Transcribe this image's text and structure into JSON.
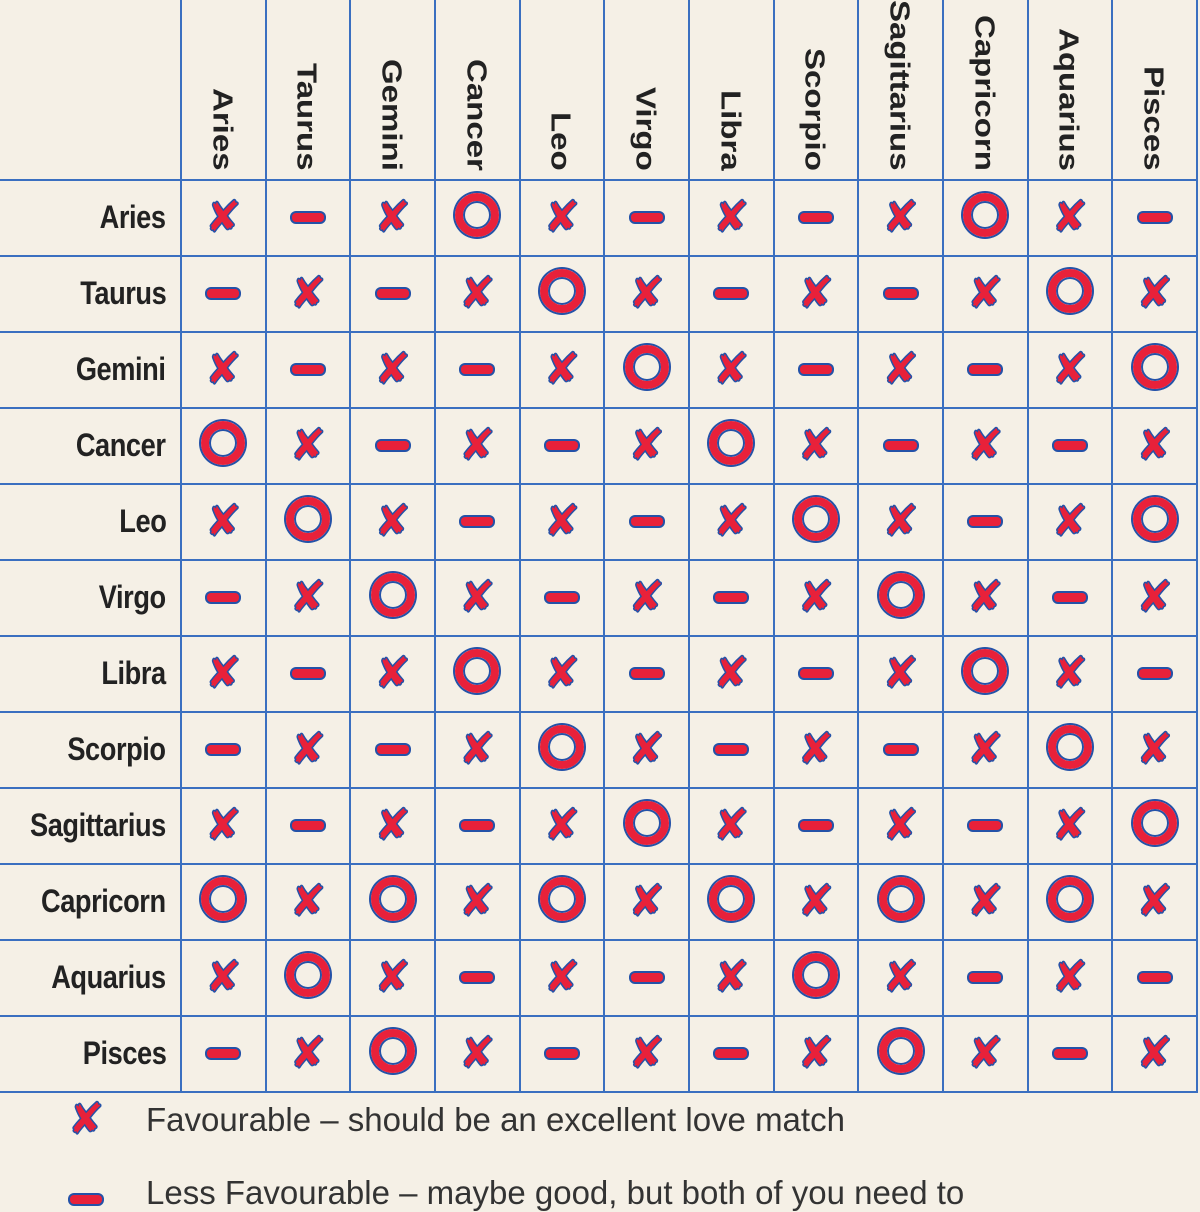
{
  "chart_data": {
    "type": "table",
    "title": "",
    "columns": [
      "Aries",
      "Taurus",
      "Gemini",
      "Cancer",
      "Leo",
      "Virgo",
      "Libra",
      "Scorpio",
      "Sagittarius",
      "Capricorn",
      "Aquarius",
      "Pisces"
    ],
    "rows": [
      "Aries",
      "Taurus",
      "Gemini",
      "Cancer",
      "Leo",
      "Virgo",
      "Libra",
      "Scorpio",
      "Sagittarius",
      "Capricorn",
      "Aquarius",
      "Pisces"
    ],
    "symbols": {
      "x": "cross",
      "-": "dash",
      "o": "circle"
    },
    "grid": [
      [
        "x",
        "-",
        "x",
        "o",
        "x",
        "-",
        "x",
        "-",
        "x",
        "o",
        "x",
        "-"
      ],
      [
        "-",
        "x",
        "-",
        "x",
        "o",
        "x",
        "-",
        "x",
        "-",
        "x",
        "o",
        "x"
      ],
      [
        "x",
        "-",
        "x",
        "-",
        "x",
        "o",
        "x",
        "-",
        "x",
        "-",
        "x",
        "o"
      ],
      [
        "o",
        "x",
        "-",
        "x",
        "-",
        "x",
        "o",
        "x",
        "-",
        "x",
        "-",
        "x"
      ],
      [
        "x",
        "o",
        "x",
        "-",
        "x",
        "-",
        "x",
        "o",
        "x",
        "-",
        "x",
        "o"
      ],
      [
        "-",
        "x",
        "o",
        "x",
        "-",
        "x",
        "-",
        "x",
        "o",
        "x",
        "-",
        "x"
      ],
      [
        "x",
        "-",
        "x",
        "o",
        "x",
        "-",
        "x",
        "-",
        "x",
        "o",
        "x",
        "-"
      ],
      [
        "-",
        "x",
        "-",
        "x",
        "o",
        "x",
        "-",
        "x",
        "-",
        "x",
        "o",
        "x"
      ],
      [
        "x",
        "-",
        "x",
        "-",
        "x",
        "o",
        "x",
        "-",
        "x",
        "-",
        "x",
        "o"
      ],
      [
        "o",
        "x",
        "o",
        "x",
        "o",
        "x",
        "o",
        "x",
        "o",
        "x",
        "o",
        "x"
      ],
      [
        "x",
        "o",
        "x",
        "-",
        "x",
        "-",
        "x",
        "o",
        "x",
        "-",
        "x",
        "-"
      ],
      [
        "-",
        "x",
        "o",
        "x",
        "-",
        "x",
        "-",
        "x",
        "o",
        "x",
        "-",
        "x"
      ]
    ]
  },
  "legend": [
    {
      "symbol": "x",
      "label": "Favourable – should be an excellent love match"
    },
    {
      "symbol": "-",
      "label": "Less Favourable – maybe good, but both of you need to"
    }
  ],
  "colors": {
    "grid": "#3a6fc0",
    "symbol_fill": "#e8213a",
    "symbol_outline": "#2452a8",
    "background": "#f5f0e6"
  }
}
